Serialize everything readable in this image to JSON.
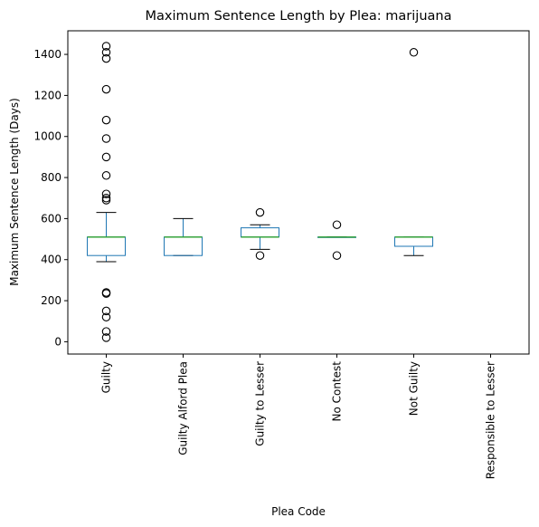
{
  "chart_data": {
    "type": "box",
    "title": "Maximum Sentence Length by Plea: marijuana",
    "xlabel": "Plea Code",
    "ylabel": "Maximum Sentence Length (Days)",
    "ylim": [
      -60,
      1515
    ],
    "yticks": [
      0,
      200,
      400,
      600,
      800,
      1000,
      1200,
      1400
    ],
    "grid": false,
    "colors": {
      "box": "#1f77b4",
      "median": "#2ca02c",
      "whisker": "#000000",
      "flier": "#000000"
    },
    "categories": [
      "Guilty",
      "Guilty Alford Plea",
      "Guilty to Lesser",
      "No Contest",
      "Not Guilty",
      "Responsible to Lesser"
    ],
    "boxes": [
      {
        "category": "Guilty",
        "q1": 420,
        "median": 510,
        "q3": 510,
        "whisker_low": 390,
        "whisker_high": 630,
        "fliers": [
          20,
          50,
          120,
          150,
          235,
          240,
          690,
          700,
          720,
          810,
          900,
          990,
          1080,
          1230,
          1380,
          1410,
          1440
        ]
      },
      {
        "category": "Guilty Alford Plea",
        "q1": 420,
        "median": 510,
        "q3": 510,
        "whisker_low": 420,
        "whisker_high": 600,
        "fliers": []
      },
      {
        "category": "Guilty to Lesser",
        "q1": 510,
        "median": 510,
        "q3": 555,
        "whisker_low": 450,
        "whisker_high": 570,
        "fliers": [
          420,
          630
        ]
      },
      {
        "category": "No Contest",
        "q1": 510,
        "median": 510,
        "q3": 510,
        "whisker_low": 510,
        "whisker_high": 510,
        "fliers": [
          420,
          570
        ]
      },
      {
        "category": "Not Guilty",
        "q1": 465,
        "median": 510,
        "q3": 510,
        "whisker_low": 420,
        "whisker_high": 510,
        "fliers": [
          1410
        ]
      },
      {
        "category": "Responsible to Lesser",
        "q1": null,
        "median": null,
        "q3": null,
        "whisker_low": null,
        "whisker_high": null,
        "fliers": []
      }
    ]
  }
}
